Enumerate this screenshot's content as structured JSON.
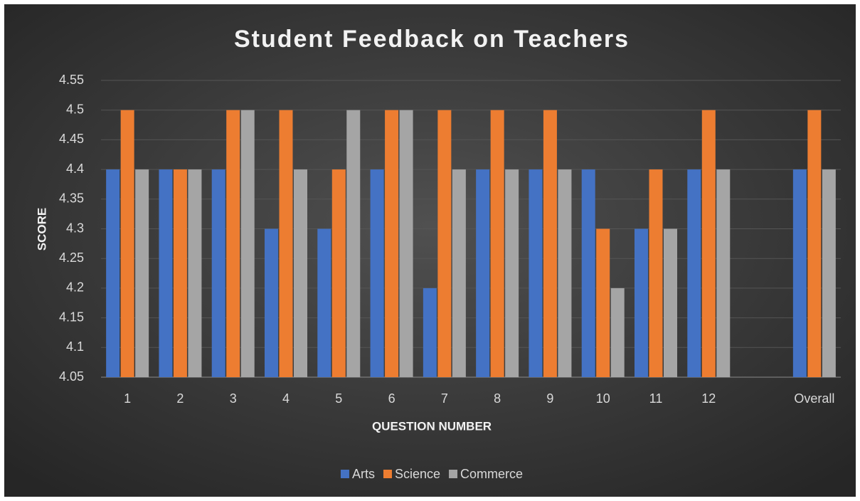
{
  "chart_data": {
    "type": "bar",
    "title": "Student Feedback on Teachers",
    "x_label": "QUESTION NUMBER",
    "y_label": "SCORE",
    "categories": [
      "1",
      "2",
      "3",
      "4",
      "5",
      "6",
      "7",
      "8",
      "9",
      "10",
      "11",
      "12",
      null,
      "Overall"
    ],
    "series": [
      {
        "name": "Arts",
        "color": "#4472c4",
        "values": [
          4.4,
          4.4,
          4.4,
          4.3,
          4.3,
          4.4,
          4.2,
          4.4,
          4.4,
          4.4,
          4.3,
          4.4,
          null,
          4.4
        ]
      },
      {
        "name": "Science",
        "color": "#ed7d31",
        "values": [
          4.5,
          4.4,
          4.5,
          4.5,
          4.4,
          4.5,
          4.5,
          4.5,
          4.5,
          4.3,
          4.4,
          4.5,
          null,
          4.5
        ]
      },
      {
        "name": "Commerce",
        "color": "#a5a5a5",
        "values": [
          4.4,
          4.4,
          4.5,
          4.4,
          4.5,
          4.5,
          4.4,
          4.4,
          4.4,
          4.2,
          4.3,
          4.4,
          null,
          4.4
        ]
      }
    ],
    "ylim": [
      4.05,
      4.55
    ],
    "yticks": [
      4.05,
      4.1,
      4.15,
      4.2,
      4.25,
      4.3,
      4.35,
      4.4,
      4.45,
      4.5,
      4.55
    ],
    "grid": true,
    "legend": "bottom"
  }
}
